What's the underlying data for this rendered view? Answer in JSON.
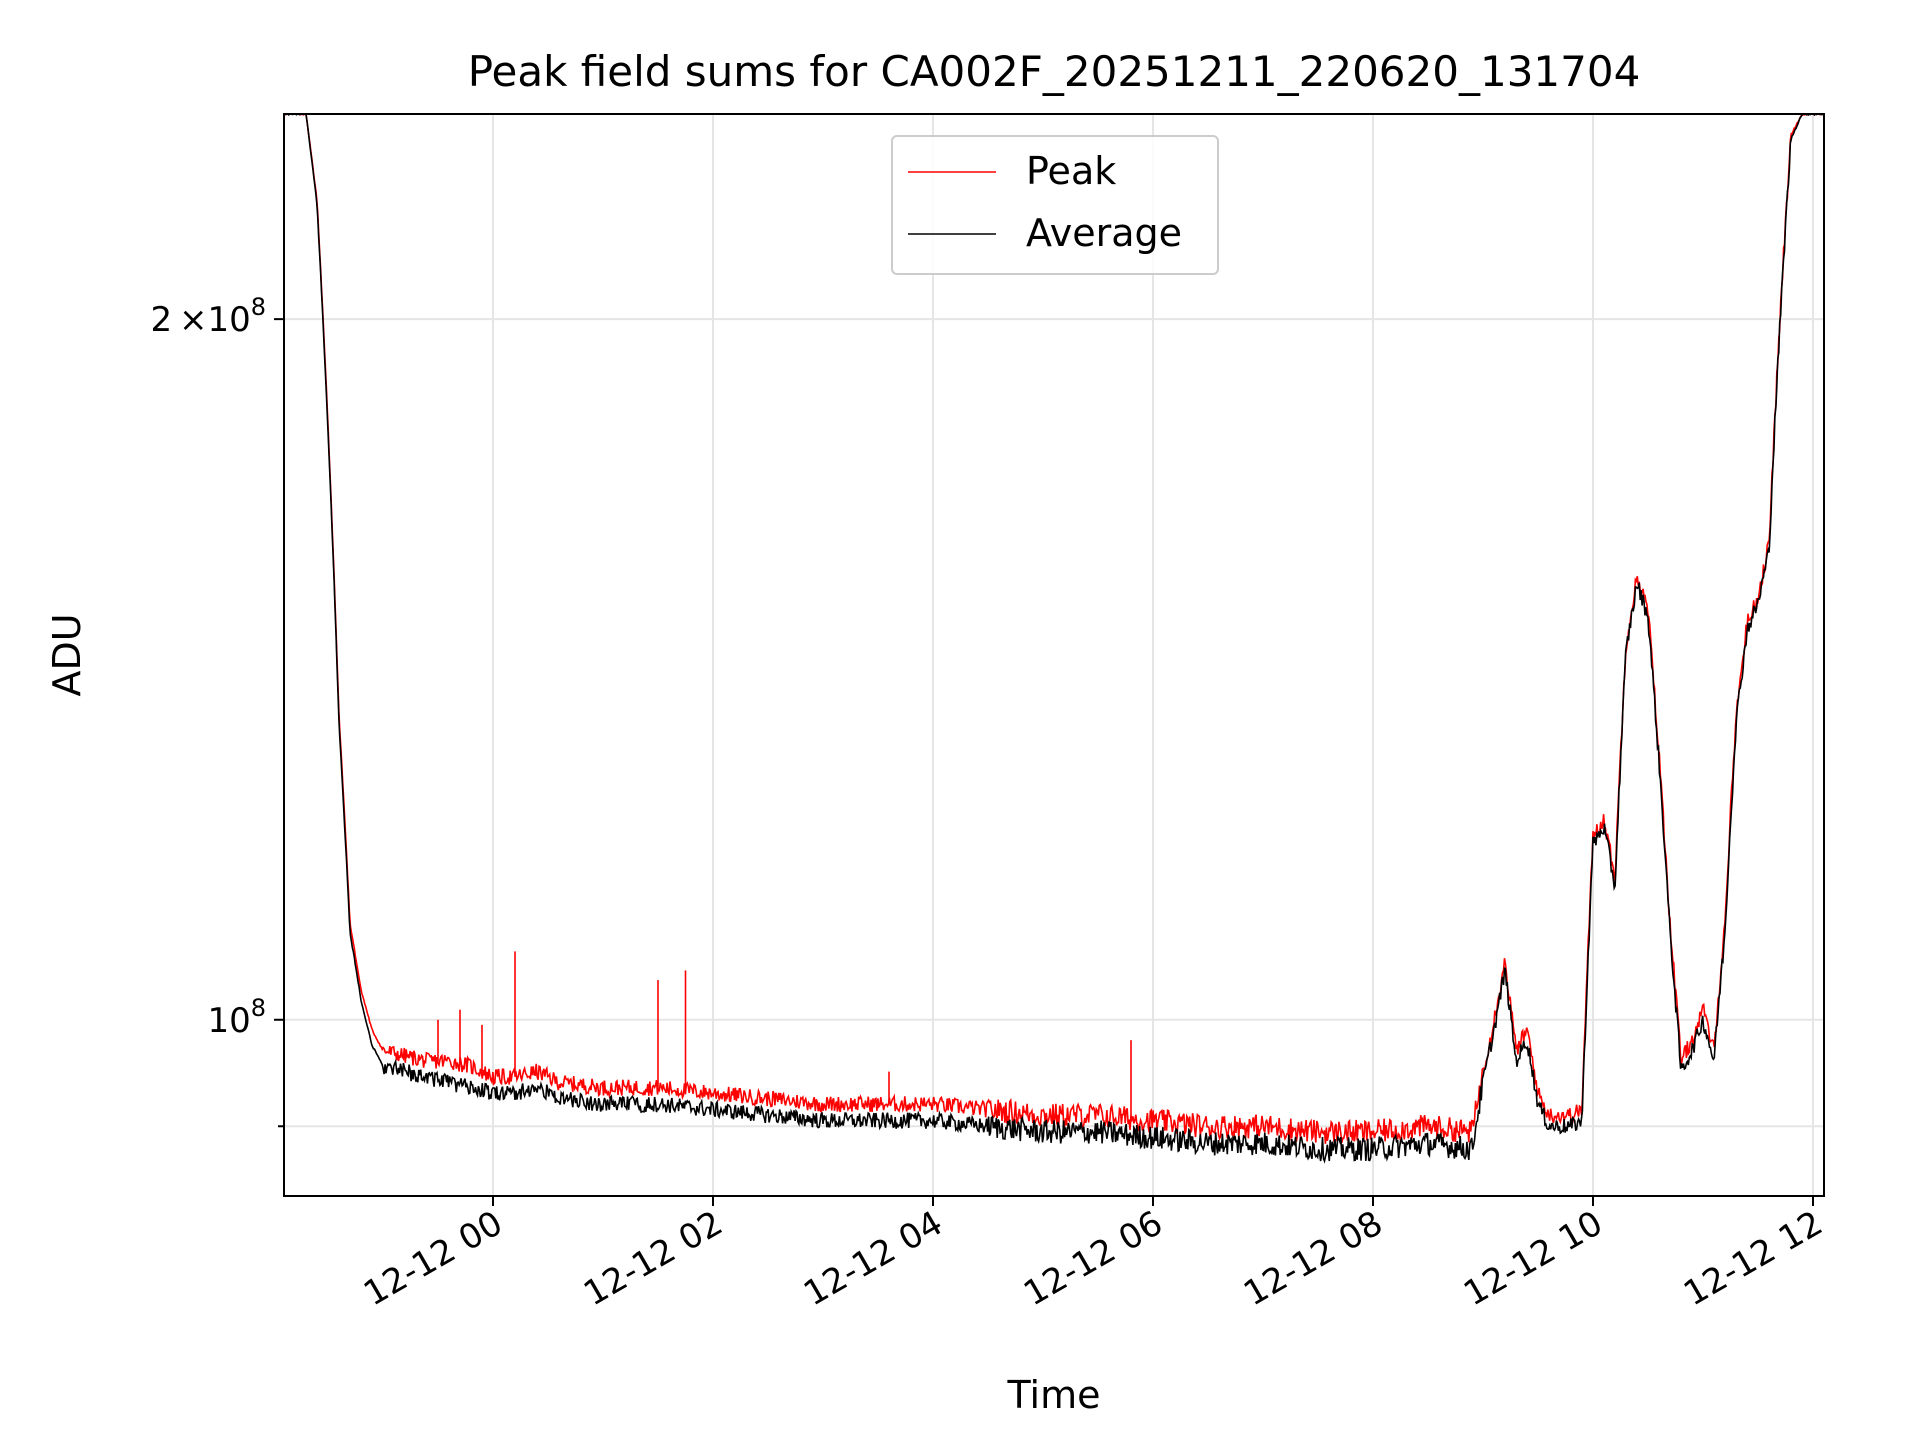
{
  "chart_data": {
    "type": "line",
    "title": "Peak field sums for CA002F_20251211_220620_131704",
    "xlabel": "Time",
    "ylabel": "ADU",
    "yscale": "log",
    "ylim": [
      84000000,
      245000000
    ],
    "xlim_hours": [
      -1.9,
      12.1
    ],
    "grid": true,
    "legend_position": "upper-center",
    "x_tick_labels": [
      "12-12 00",
      "12-12 02",
      "12-12 04",
      "12-12 06",
      "12-12 08",
      "12-12 10",
      "12-12 12"
    ],
    "x_tick_hours": [
      0,
      2,
      4,
      6,
      8,
      10,
      12
    ],
    "y_tick_labels": [
      {
        "base": "2",
        "times": "×",
        "ten": "10",
        "exp": "8",
        "value": 200000000
      },
      {
        "base": "",
        "times": "",
        "ten": "10",
        "exp": "8",
        "value": 100000000
      }
    ],
    "y_minor_tick_values": [
      90000000
    ],
    "series": [
      {
        "name": "Peak",
        "color": "#ff0000",
        "points": [
          [
            -1.9,
            245000000
          ],
          [
            -1.7,
            245000000
          ],
          [
            -1.6,
            225000000
          ],
          [
            -1.5,
            180000000
          ],
          [
            -1.4,
            135000000
          ],
          [
            -1.3,
            110000000
          ],
          [
            -1.2,
            103000000
          ],
          [
            -1.1,
            99000000
          ],
          [
            -1.0,
            97000000
          ],
          [
            -0.8,
            96500000
          ],
          [
            -0.6,
            96000000
          ],
          [
            -0.4,
            96000000
          ],
          [
            -0.2,
            95500000
          ],
          [
            0.0,
            94500000
          ],
          [
            0.2,
            94500000
          ],
          [
            0.4,
            95000000
          ],
          [
            0.6,
            94000000
          ],
          [
            1.0,
            93500000
          ],
          [
            1.5,
            93500000
          ],
          [
            2.0,
            93000000
          ],
          [
            2.5,
            92500000
          ],
          [
            3.0,
            92000000
          ],
          [
            3.5,
            92000000
          ],
          [
            4.0,
            92000000
          ],
          [
            4.5,
            91500000
          ],
          [
            5.0,
            91000000
          ],
          [
            5.5,
            91000000
          ],
          [
            6.0,
            90500000
          ],
          [
            6.5,
            90000000
          ],
          [
            7.0,
            90000000
          ],
          [
            7.5,
            89500000
          ],
          [
            8.0,
            89500000
          ],
          [
            8.5,
            90000000
          ],
          [
            8.9,
            89500000
          ],
          [
            9.0,
            95000000
          ],
          [
            9.1,
            100000000
          ],
          [
            9.2,
            106000000
          ],
          [
            9.3,
            97000000
          ],
          [
            9.4,
            99000000
          ],
          [
            9.5,
            93000000
          ],
          [
            9.6,
            91000000
          ],
          [
            9.8,
            91000000
          ],
          [
            9.9,
            91500000
          ],
          [
            10.0,
            120000000
          ],
          [
            10.1,
            122000000
          ],
          [
            10.2,
            115000000
          ],
          [
            10.3,
            145000000
          ],
          [
            10.4,
            155000000
          ],
          [
            10.5,
            150000000
          ],
          [
            10.6,
            130000000
          ],
          [
            10.7,
            110000000
          ],
          [
            10.8,
            96000000
          ],
          [
            10.9,
            98000000
          ],
          [
            11.0,
            101000000
          ],
          [
            11.1,
            97000000
          ],
          [
            11.2,
            110000000
          ],
          [
            11.3,
            135000000
          ],
          [
            11.4,
            148000000
          ],
          [
            11.5,
            152000000
          ],
          [
            11.6,
            160000000
          ],
          [
            11.7,
            200000000
          ],
          [
            11.8,
            240000000
          ],
          [
            11.9,
            245000000
          ],
          [
            12.1,
            245000000
          ]
        ],
        "spikes": [
          [
            -0.5,
            100000000
          ],
          [
            -0.3,
            101000000
          ],
          [
            -0.1,
            99500000
          ],
          [
            0.2,
            107000000
          ],
          [
            1.5,
            104000000
          ],
          [
            1.75,
            105000000
          ],
          [
            5.8,
            98000000
          ],
          [
            3.6,
            95000000
          ]
        ]
      },
      {
        "name": "Average",
        "color": "#000000",
        "points": [
          [
            -1.9,
            245000000
          ],
          [
            -1.7,
            245000000
          ],
          [
            -1.6,
            224000000
          ],
          [
            -1.5,
            179000000
          ],
          [
            -1.4,
            134000000
          ],
          [
            -1.3,
            109000000
          ],
          [
            -1.2,
            102000000
          ],
          [
            -1.1,
            97500000
          ],
          [
            -1.0,
            95500000
          ],
          [
            -0.8,
            95000000
          ],
          [
            -0.6,
            94500000
          ],
          [
            -0.4,
            94000000
          ],
          [
            -0.2,
            93500000
          ],
          [
            0.0,
            93000000
          ],
          [
            0.2,
            93000000
          ],
          [
            0.4,
            93500000
          ],
          [
            0.6,
            92500000
          ],
          [
            1.0,
            92000000
          ],
          [
            1.5,
            92000000
          ],
          [
            2.0,
            91500000
          ],
          [
            2.5,
            91000000
          ],
          [
            3.0,
            90500000
          ],
          [
            3.5,
            90500000
          ],
          [
            4.0,
            90500000
          ],
          [
            4.5,
            90000000
          ],
          [
            5.0,
            89500000
          ],
          [
            5.5,
            89500000
          ],
          [
            6.0,
            89000000
          ],
          [
            6.5,
            88500000
          ],
          [
            7.0,
            88500000
          ],
          [
            7.5,
            88000000
          ],
          [
            8.0,
            88000000
          ],
          [
            8.5,
            88500000
          ],
          [
            8.9,
            88000000
          ],
          [
            9.0,
            94000000
          ],
          [
            9.1,
            99000000
          ],
          [
            9.2,
            105000000
          ],
          [
            9.3,
            96000000
          ],
          [
            9.4,
            98000000
          ],
          [
            9.5,
            92000000
          ],
          [
            9.6,
            90000000
          ],
          [
            9.8,
            90000000
          ],
          [
            9.9,
            90500000
          ],
          [
            10.0,
            119000000
          ],
          [
            10.1,
            121000000
          ],
          [
            10.2,
            114000000
          ],
          [
            10.3,
            144000000
          ],
          [
            10.4,
            154000000
          ],
          [
            10.5,
            149000000
          ],
          [
            10.6,
            129000000
          ],
          [
            10.7,
            109000000
          ],
          [
            10.8,
            95000000
          ],
          [
            10.9,
            97000000
          ],
          [
            11.0,
            100000000
          ],
          [
            11.1,
            96000000
          ],
          [
            11.2,
            109000000
          ],
          [
            11.3,
            134000000
          ],
          [
            11.4,
            147000000
          ],
          [
            11.5,
            151000000
          ],
          [
            11.6,
            159000000
          ],
          [
            11.7,
            199000000
          ],
          [
            11.8,
            239000000
          ],
          [
            11.9,
            245000000
          ],
          [
            12.1,
            245000000
          ]
        ]
      }
    ]
  }
}
